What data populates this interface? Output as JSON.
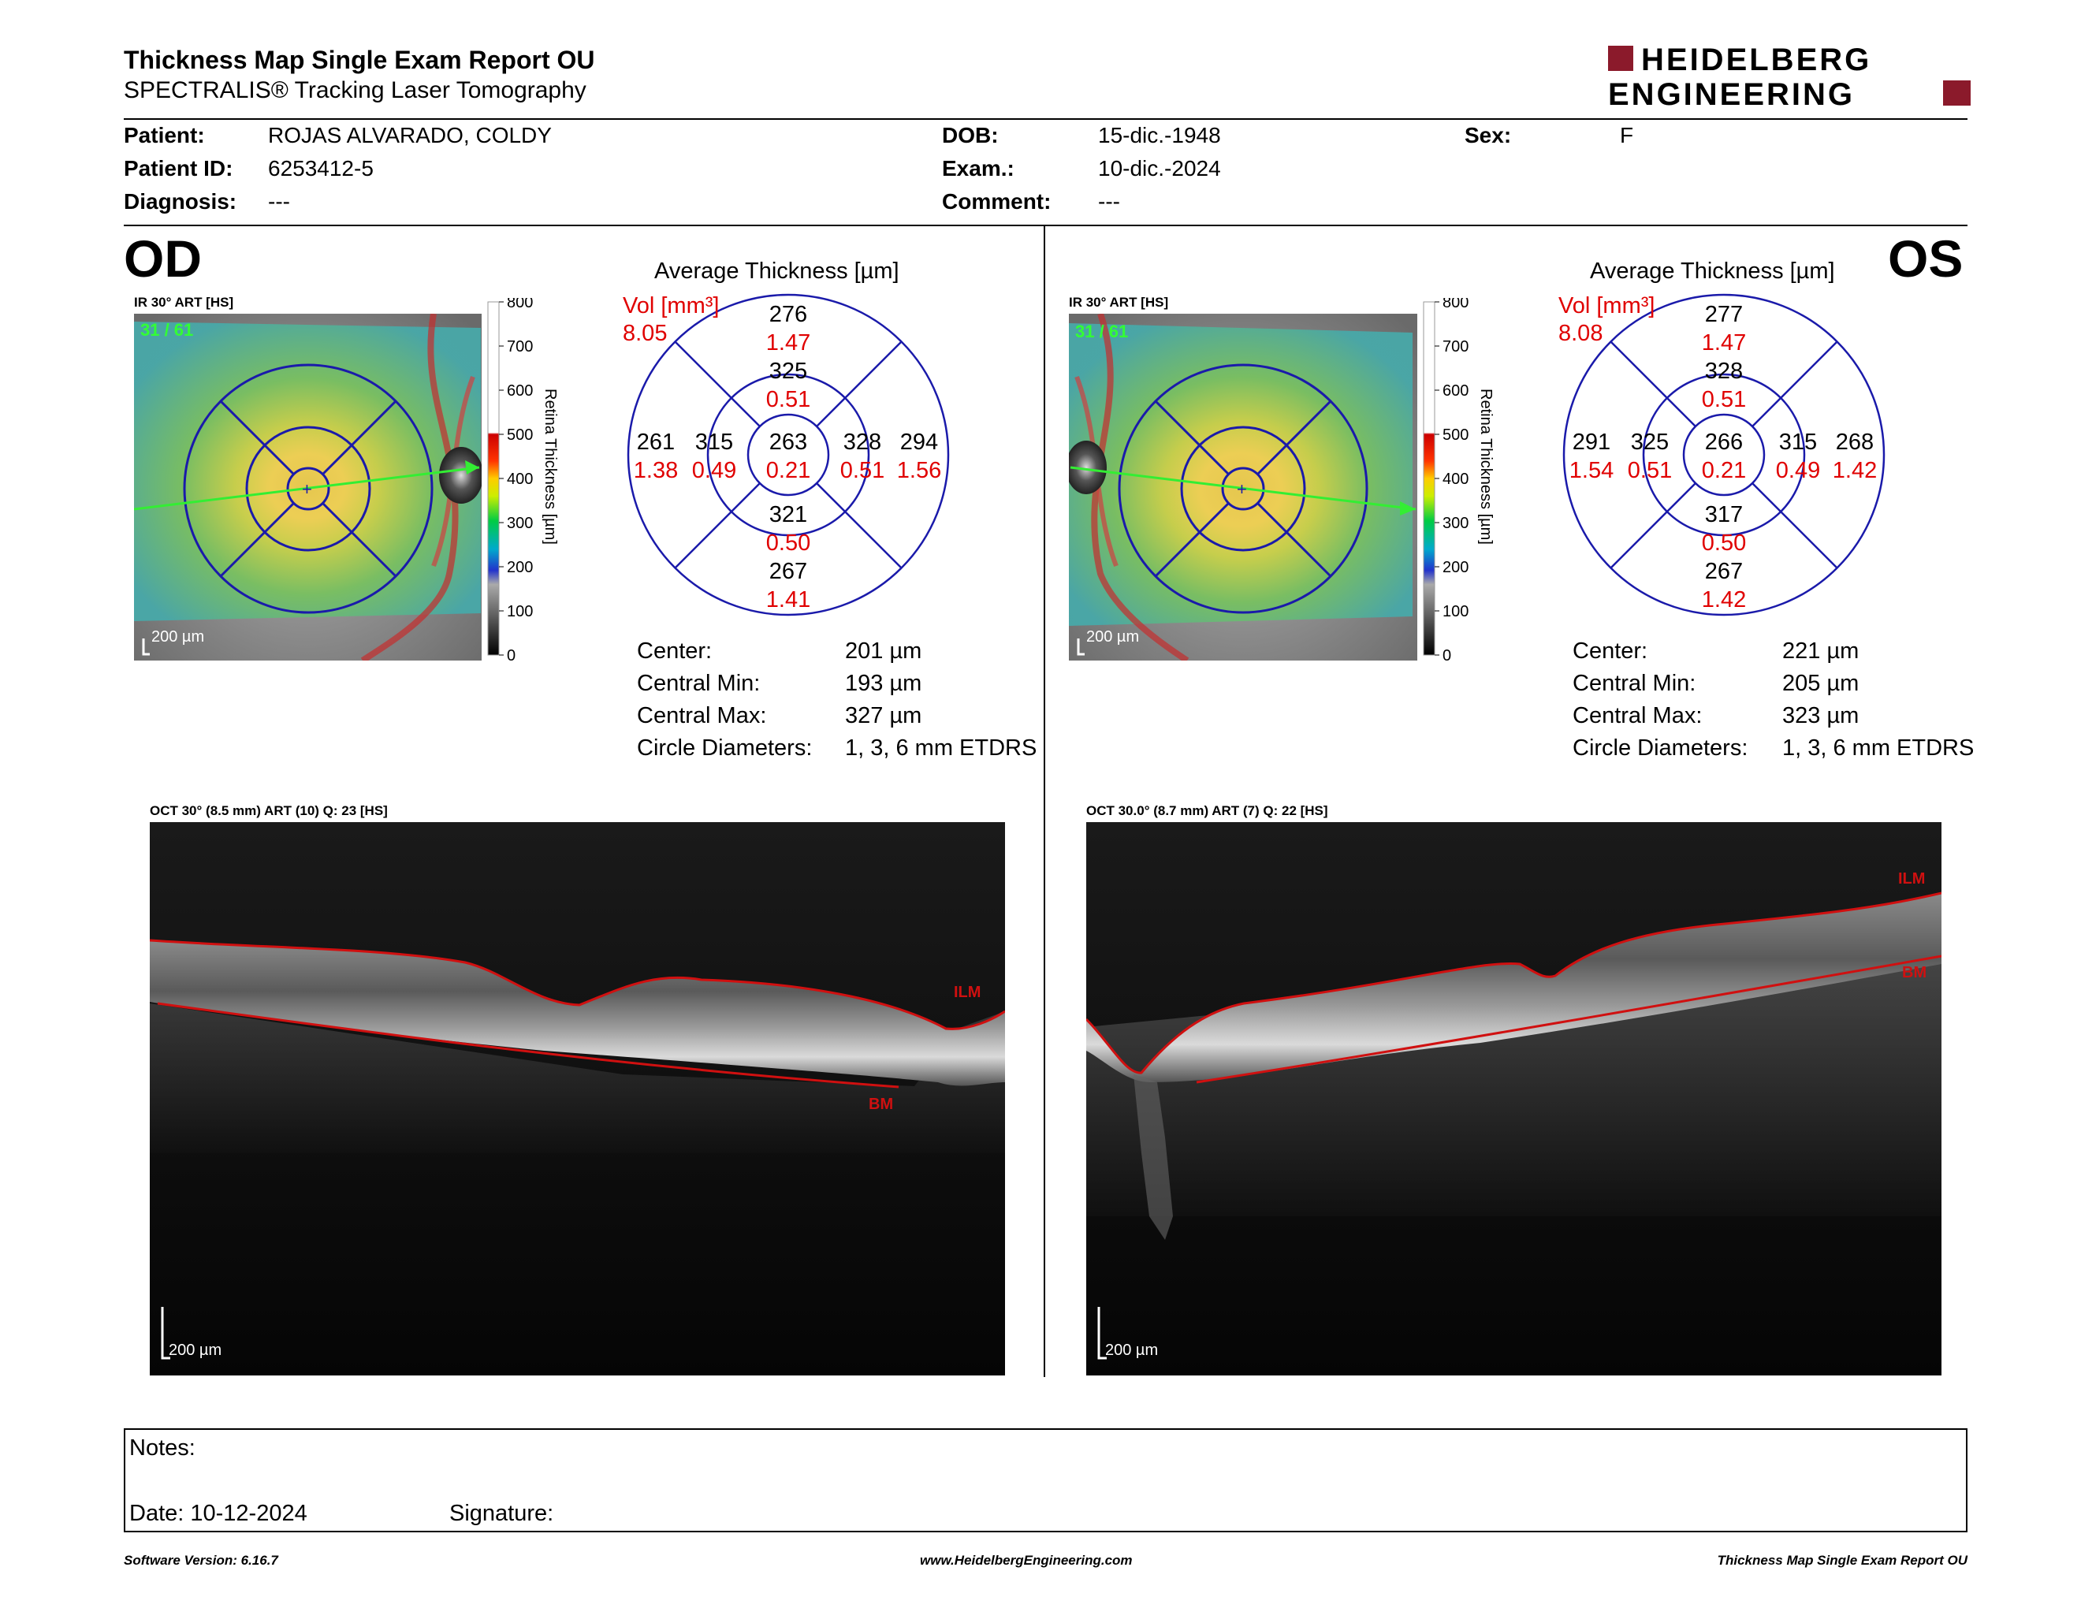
{
  "header": {
    "title": "Thickness Map Single Exam Report OU",
    "subtitle": "SPECTRALIS® Tracking Laser Tomography",
    "brand_line1": "HEIDELBERG",
    "brand_line2": "ENGINEERING",
    "brand_color": "#8b1a2b"
  },
  "patient": {
    "patient_label": "Patient:",
    "patient_value": "ROJAS ALVARADO, COLDY",
    "id_label": "Patient ID:",
    "id_value": "6253412-5",
    "diagnosis_label": "Diagnosis:",
    "diagnosis_value": "---",
    "dob_label": "DOB:",
    "dob_value": "15-dic.-1948",
    "exam_label": "Exam.:",
    "exam_value": "10-dic.-2024",
    "comment_label": "Comment:",
    "comment_value": "---",
    "sex_label": "Sex:",
    "sex_value": "F"
  },
  "od": {
    "eye_label": "OD",
    "ir_caption": "IR 30° ART [HS]",
    "frame_label": "31 / 61",
    "scale_bar": "200 µm",
    "colorbar_ticks": [
      "800",
      "700",
      "600",
      "500",
      "400",
      "300",
      "200",
      "100",
      "0"
    ],
    "colorbar_title": "Retina Thickness [µm]",
    "avg_title": "Average Thickness [µm]",
    "vol_label": "Vol [mm³]",
    "vol_value": "8.05",
    "sectors": {
      "center": {
        "t": "263",
        "v": "0.21"
      },
      "inner_sup": {
        "t": "325",
        "v": "0.51"
      },
      "inner_inf": {
        "t": "321",
        "v": "0.50"
      },
      "inner_left": {
        "t": "315",
        "v": "0.49"
      },
      "inner_right": {
        "t": "328",
        "v": "0.51"
      },
      "outer_sup": {
        "t": "276",
        "v": "1.47"
      },
      "outer_inf": {
        "t": "267",
        "v": "1.41"
      },
      "outer_left": {
        "t": "261",
        "v": "1.38"
      },
      "outer_right": {
        "t": "294",
        "v": "1.56"
      }
    },
    "stats": [
      {
        "label": "Center:",
        "value": "201 µm"
      },
      {
        "label": "Central Min:",
        "value": "193 µm"
      },
      {
        "label": "Central Max:",
        "value": "327 µm"
      },
      {
        "label": "Circle Diameters:",
        "value": "1, 3, 6 mm ETDRS"
      }
    ],
    "oct_caption": "OCT 30° (8.5 mm) ART (10) Q: 23 [HS]",
    "ilm_label": "ILM",
    "bm_label": "BM",
    "oct_scale": "200 µm"
  },
  "os": {
    "eye_label": "OS",
    "ir_caption": "IR 30° ART [HS]",
    "frame_label": "31 / 61",
    "scale_bar": "200 µm",
    "colorbar_ticks": [
      "800",
      "700",
      "600",
      "500",
      "400",
      "300",
      "200",
      "100",
      "0"
    ],
    "colorbar_title": "Retina Thickness [µm]",
    "avg_title": "Average Thickness [µm]",
    "vol_label": "Vol [mm³]",
    "vol_value": "8.08",
    "sectors": {
      "center": {
        "t": "266",
        "v": "0.21"
      },
      "inner_sup": {
        "t": "328",
        "v": "0.51"
      },
      "inner_inf": {
        "t": "317",
        "v": "0.50"
      },
      "inner_left": {
        "t": "325",
        "v": "0.51"
      },
      "inner_right": {
        "t": "315",
        "v": "0.49"
      },
      "outer_sup": {
        "t": "277",
        "v": "1.47"
      },
      "outer_inf": {
        "t": "267",
        "v": "1.42"
      },
      "outer_left": {
        "t": "291",
        "v": "1.54"
      },
      "outer_right": {
        "t": "268",
        "v": "1.42"
      }
    },
    "stats": [
      {
        "label": "Center:",
        "value": "221 µm"
      },
      {
        "label": "Central Min:",
        "value": "205 µm"
      },
      {
        "label": "Central Max:",
        "value": "323 µm"
      },
      {
        "label": "Circle Diameters:",
        "value": "1, 3, 6 mm ETDRS"
      }
    ],
    "oct_caption": "OCT 30.0° (8.7 mm) ART (7) Q: 22 [HS]",
    "ilm_label": "ILM",
    "bm_label": "BM",
    "oct_scale": "200 µm"
  },
  "notes": {
    "notes_label": "Notes:",
    "date_label": "Date: 10-12-2024",
    "signature_label": "Signature:"
  },
  "footer": {
    "left": "Software Version: 6.16.7",
    "center": "www.HeidelbergEngineering.com",
    "right": "Thickness Map Single Exam Report OU"
  }
}
